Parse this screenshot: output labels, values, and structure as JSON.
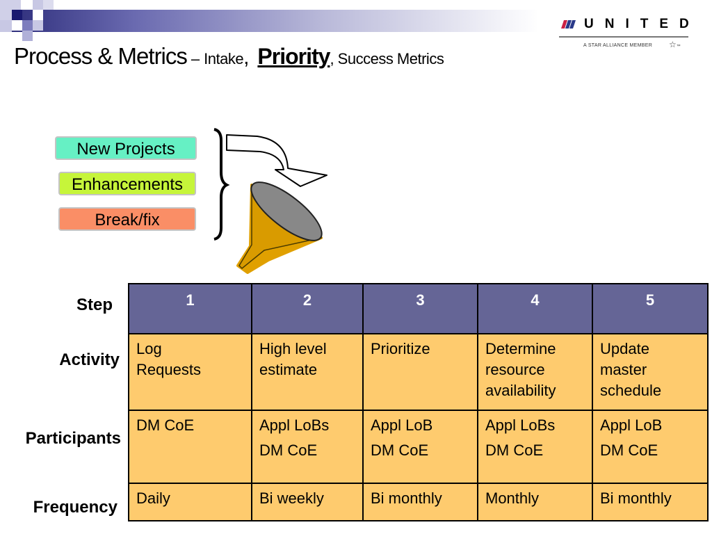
{
  "title": {
    "main": "Process & Metrics",
    "dash": "–",
    "intake": "Intake",
    "comma1": ",",
    "priority": "Priority",
    "success": ", Success Metrics"
  },
  "logo": {
    "word": "UNITED",
    "tagline": "A STAR ALLIANCE MEMBER",
    "tm": "™"
  },
  "intake_items": [
    {
      "label": "New Projects",
      "color": "#66f0c4"
    },
    {
      "label": "Enhancements",
      "color": "#c6f53a"
    },
    {
      "label": "Break/fix",
      "color": "#fa8e66"
    }
  ],
  "row_labels": {
    "step": "Step",
    "activity": "Activity",
    "participants": "Participants",
    "frequency": "Frequency"
  },
  "table": {
    "steps": [
      "1",
      "2",
      "3",
      "4",
      "5"
    ],
    "activity": [
      [
        "Log",
        "Requests"
      ],
      [
        "High level",
        "estimate"
      ],
      [
        "Prioritize"
      ],
      [
        "Determine",
        "resource",
        "availability"
      ],
      [
        "Update",
        "master",
        "schedule"
      ]
    ],
    "participants": [
      [
        "DM CoE"
      ],
      [
        "Appl LoBs",
        "DM CoE"
      ],
      [
        "Appl LoB",
        "DM CoE"
      ],
      [
        "Appl LoBs",
        "DM CoE"
      ],
      [
        "Appl LoB",
        "DM CoE"
      ]
    ],
    "frequency": [
      "Daily",
      "Bi weekly",
      "Bi monthly",
      "Monthly",
      "Bi monthly"
    ]
  },
  "colors": {
    "header": "#656596",
    "cell": "#fecb6e",
    "funnel": "#e0a000"
  }
}
